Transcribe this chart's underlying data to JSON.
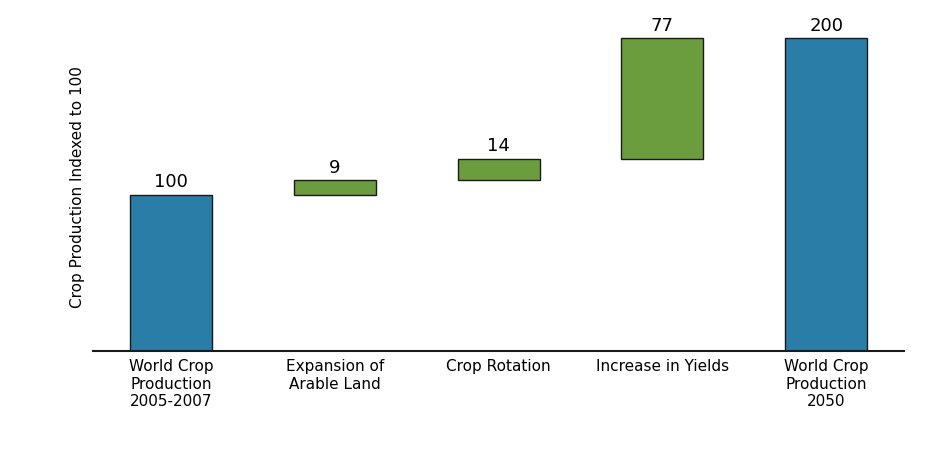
{
  "categories": [
    "World Crop\nProduction\n2005-2007",
    "Expansion of\nArable Land",
    "Crop Rotation",
    "Increase in Yields",
    "World Crop\nProduction\n2050"
  ],
  "values": [
    100,
    9,
    14,
    77,
    200
  ],
  "bottoms": [
    0,
    100,
    109,
    123,
    0
  ],
  "bar_colors": [
    "#2a7da6",
    "#6b9c3e",
    "#6b9c3e",
    "#6b9c3e",
    "#2a7da6"
  ],
  "edgecolor": "#1a1a1a",
  "bar_labels": [
    "100",
    "9",
    "14",
    "77",
    "200"
  ],
  "ylabel": "Crop Production Indexed to 100",
  "ylim": [
    0,
    210
  ],
  "ylabel_fontsize": 11,
  "label_fontsize": 13,
  "tick_fontsize": 11,
  "bar_width": 0.5,
  "figsize": [
    9.32,
    4.5
  ],
  "dpi": 100,
  "bg_color": "#ffffff"
}
